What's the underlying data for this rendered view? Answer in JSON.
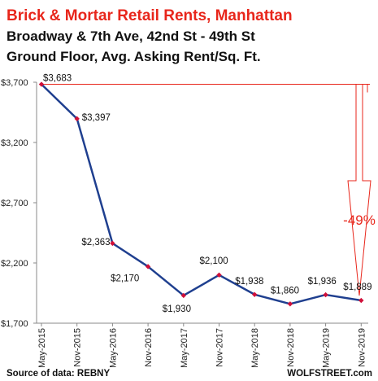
{
  "chart_data": {
    "type": "line",
    "title": "Brick & Mortar Retail Rents, Manhattan",
    "subtitle_lines": [
      "Broadway & 7th Ave, 42nd St - 49th St",
      "Ground Floor, Avg. Asking Rent/Sq. Ft."
    ],
    "categories": [
      "May-2015",
      "Nov-2015",
      "May-2016",
      "Nov-2016",
      "May-2017",
      "Nov-2017",
      "May-2018",
      "Nov-2018",
      "May-2019",
      "Nov-2019"
    ],
    "series": [
      {
        "values": [
          3683,
          3397,
          2363,
          2170,
          1930,
          2100,
          1938,
          1860,
          1936,
          1889
        ]
      }
    ],
    "data_labels": [
      "$3,683",
      "$3,397",
      "$2,363",
      "$2,170",
      "$1,930",
      "$2,100",
      "$1,938",
      "$1,860",
      "$1,936",
      "$1,889"
    ],
    "y_ticks": [
      3700,
      3200,
      2700,
      2200,
      1700
    ],
    "y_tick_labels": [
      "$3,700",
      "$3,200",
      "$2,700",
      "$2,200",
      "$1,700"
    ],
    "ylim": [
      1700,
      3700
    ],
    "annotation": "-49%",
    "source": "Source of data: REBNY",
    "credit": "WOLFSTREET.com",
    "grid": false,
    "colors": {
      "title": "#e8261b",
      "line": "#1f3f8f",
      "marker": "#d0103a",
      "annotation": "#e8261b",
      "text": "#111111"
    }
  }
}
